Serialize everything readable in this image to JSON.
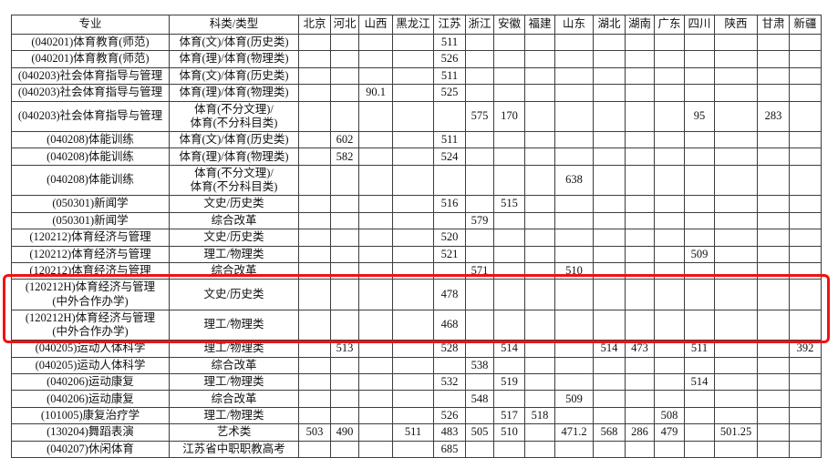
{
  "table": {
    "headers": [
      "专业",
      "科类/类型",
      "北京",
      "河北",
      "山西",
      "黑龙江",
      "江苏",
      "浙江",
      "安徽",
      "福建",
      "山东",
      "湖北",
      "湖南",
      "广东",
      "四川",
      "陕西",
      "甘肃",
      "新疆"
    ],
    "rows": [
      {
        "major": "(040201)体育教育(师范)",
        "type": "体育(文)/体育(历史类)",
        "tall": false,
        "highlighted": false,
        "scores": [
          "",
          "",
          "",
          "",
          "511",
          "",
          "",
          "",
          "",
          "",
          "",
          "",
          "",
          "",
          "",
          ""
        ]
      },
      {
        "major": "(040201)体育教育(师范)",
        "type": "体育(理)/体育(物理类)",
        "tall": false,
        "highlighted": false,
        "scores": [
          "",
          "",
          "",
          "",
          "526",
          "",
          "",
          "",
          "",
          "",
          "",
          "",
          "",
          "",
          "",
          ""
        ]
      },
      {
        "major": "(040203)社会体育指导与管理",
        "type": "体育(文)/体育(历史类)",
        "tall": false,
        "highlighted": false,
        "scores": [
          "",
          "",
          "",
          "",
          "511",
          "",
          "",
          "",
          "",
          "",
          "",
          "",
          "",
          "",
          "",
          ""
        ]
      },
      {
        "major": "(040203)社会体育指导与管理",
        "type": "体育(理)/体育(物理类)",
        "tall": false,
        "highlighted": false,
        "scores": [
          "",
          "",
          "90.1",
          "",
          "525",
          "",
          "",
          "",
          "",
          "",
          "",
          "",
          "",
          "",
          "",
          ""
        ]
      },
      {
        "major": "(040203)社会体育指导与管理",
        "type": "体育(不分文理)/\n体育(不分科目类)",
        "tall": true,
        "highlighted": false,
        "scores": [
          "",
          "",
          "",
          "",
          "",
          "575",
          "170",
          "",
          "",
          "",
          "",
          "",
          "95",
          "",
          "283",
          ""
        ]
      },
      {
        "major": "(040208)体能训练",
        "type": "体育(文)/体育(历史类)",
        "tall": false,
        "highlighted": false,
        "scores": [
          "",
          "602",
          "",
          "",
          "511",
          "",
          "",
          "",
          "",
          "",
          "",
          "",
          "",
          "",
          "",
          ""
        ]
      },
      {
        "major": "(040208)体能训练",
        "type": "体育(理)/体育(物理类)",
        "tall": false,
        "highlighted": false,
        "scores": [
          "",
          "582",
          "",
          "",
          "524",
          "",
          "",
          "",
          "",
          "",
          "",
          "",
          "",
          "",
          "",
          ""
        ]
      },
      {
        "major": "(040208)体能训练",
        "type": "体育(不分文理)/\n体育(不分科目类)",
        "tall": true,
        "highlighted": false,
        "scores": [
          "",
          "",
          "",
          "",
          "",
          "",
          "",
          "",
          "638",
          "",
          "",
          "",
          "",
          "",
          "",
          ""
        ]
      },
      {
        "major": "(050301)新闻学",
        "type": "文史/历史类",
        "tall": false,
        "highlighted": false,
        "scores": [
          "",
          "",
          "",
          "",
          "516",
          "",
          "515",
          "",
          "",
          "",
          "",
          "",
          "",
          "",
          "",
          ""
        ]
      },
      {
        "major": "(050301)新闻学",
        "type": "综合改革",
        "tall": false,
        "highlighted": false,
        "scores": [
          "",
          "",
          "",
          "",
          "",
          "579",
          "",
          "",
          "",
          "",
          "",
          "",
          "",
          "",
          "",
          ""
        ]
      },
      {
        "major": "(120212)体育经济与管理",
        "type": "文史/历史类",
        "tall": false,
        "highlighted": false,
        "scores": [
          "",
          "",
          "",
          "",
          "520",
          "",
          "",
          "",
          "",
          "",
          "",
          "",
          "",
          "",
          "",
          ""
        ]
      },
      {
        "major": "(120212)体育经济与管理",
        "type": "理工/物理类",
        "tall": false,
        "highlighted": false,
        "scores": [
          "",
          "",
          "",
          "",
          "521",
          "",
          "",
          "",
          "",
          "",
          "",
          "",
          "509",
          "",
          "",
          ""
        ]
      },
      {
        "major": "(120212)体育经济与管理",
        "type": "综合改革",
        "tall": false,
        "highlighted": false,
        "scores": [
          "",
          "",
          "",
          "",
          "",
          "571",
          "",
          "",
          "510",
          "",
          "",
          "",
          "",
          "",
          "",
          ""
        ]
      },
      {
        "major": "(120212H)体育经济与管理\n(中外合作办学)",
        "type": "文史/历史类",
        "tall": true,
        "highlighted": true,
        "scores": [
          "",
          "",
          "",
          "",
          "478",
          "",
          "",
          "",
          "",
          "",
          "",
          "",
          "",
          "",
          "",
          ""
        ]
      },
      {
        "major": "(120212H)体育经济与管理\n(中外合作办学)",
        "type": "理工/物理类",
        "tall": true,
        "highlighted": true,
        "scores": [
          "",
          "",
          "",
          "",
          "468",
          "",
          "",
          "",
          "",
          "",
          "",
          "",
          "",
          "",
          "",
          ""
        ]
      },
      {
        "major": "(040205)运动人体科学",
        "type": "理工/物理类",
        "tall": false,
        "highlighted": false,
        "scores": [
          "",
          "513",
          "",
          "",
          "528",
          "",
          "514",
          "",
          "",
          "514",
          "473",
          "",
          "511",
          "",
          "",
          "392"
        ]
      },
      {
        "major": "(040205)运动人体科学",
        "type": "综合改革",
        "tall": false,
        "highlighted": false,
        "scores": [
          "",
          "",
          "",
          "",
          "",
          "538",
          "",
          "",
          "",
          "",
          "",
          "",
          "",
          "",
          "",
          ""
        ]
      },
      {
        "major": "(040206)运动康复",
        "type": "理工/物理类",
        "tall": false,
        "highlighted": false,
        "scores": [
          "",
          "",
          "",
          "",
          "532",
          "",
          "519",
          "",
          "",
          "",
          "",
          "",
          "514",
          "",
          "",
          ""
        ]
      },
      {
        "major": "(040206)运动康复",
        "type": "综合改革",
        "tall": false,
        "highlighted": false,
        "scores": [
          "",
          "",
          "",
          "",
          "",
          "548",
          "",
          "",
          "509",
          "",
          "",
          "",
          "",
          "",
          "",
          ""
        ]
      },
      {
        "major": "(101005)康复治疗学",
        "type": "理工/物理类",
        "tall": false,
        "highlighted": false,
        "scores": [
          "",
          "",
          "",
          "",
          "526",
          "",
          "517",
          "518",
          "",
          "",
          "",
          "508",
          "",
          "",
          "",
          ""
        ]
      },
      {
        "major": "(130204)舞蹈表演",
        "type": "艺术类",
        "tall": false,
        "highlighted": false,
        "scores": [
          "503",
          "490",
          "",
          "511",
          "483",
          "505",
          "510",
          "",
          "471.2",
          "568",
          "286",
          "479",
          "",
          "501.25",
          "",
          ""
        ]
      },
      {
        "major": "(040207)休闲体育",
        "type": "江苏省中职职教高考",
        "tall": false,
        "highlighted": false,
        "scores": [
          "",
          "",
          "",
          "",
          "685",
          "",
          "",
          "",
          "",
          "",
          "",
          "",
          "",
          "",
          "",
          ""
        ]
      }
    ]
  },
  "highlight": {
    "color": "#f01212",
    "row_indices": [
      13,
      14
    ]
  },
  "colors": {
    "grid": "#3d3d3d",
    "text": "#111111",
    "background": "#ffffff"
  }
}
